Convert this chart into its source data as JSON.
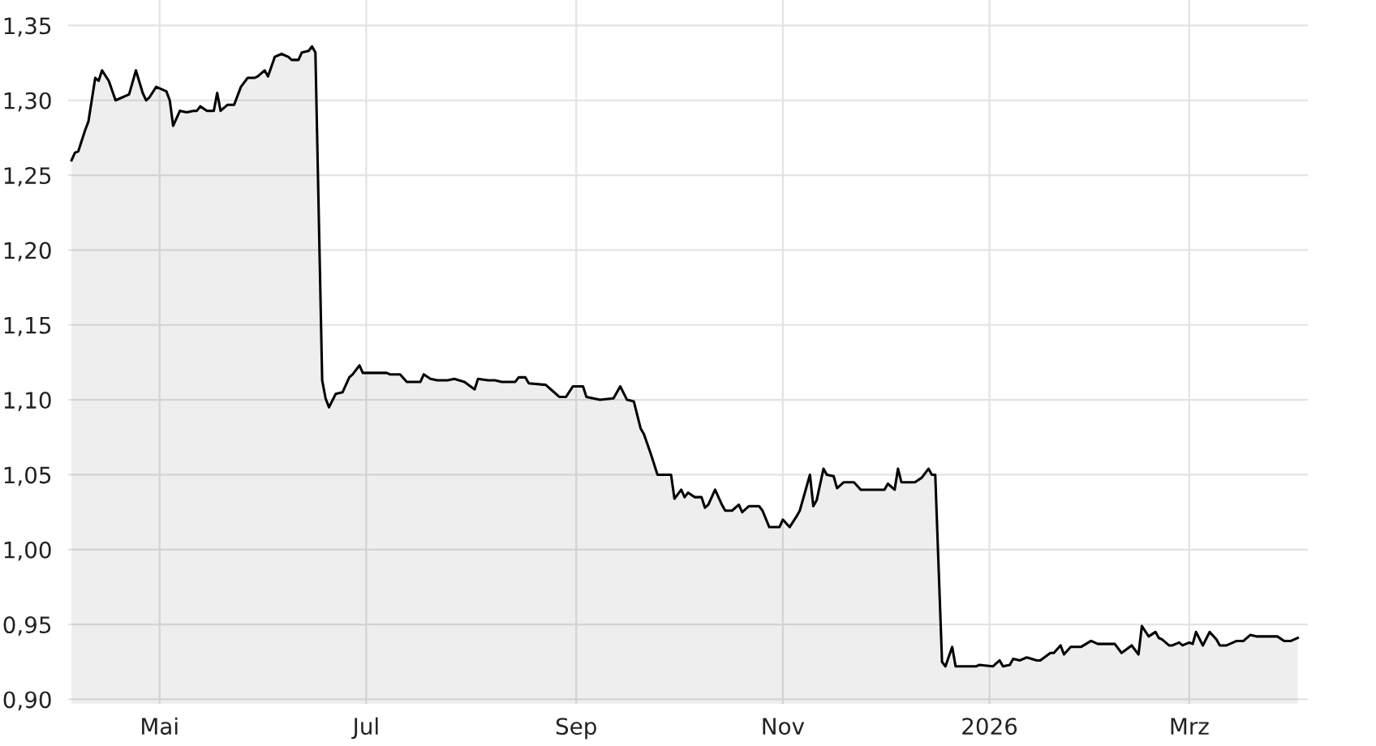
{
  "chart_data": {
    "type": "area",
    "x": [
      "2025-04-05",
      "2025-04-06",
      "2025-04-07",
      "2025-04-09",
      "2025-04-10",
      "2025-04-12",
      "2025-04-13",
      "2025-04-14",
      "2025-04-16",
      "2025-04-18",
      "2025-04-22",
      "2025-04-24",
      "2025-04-26",
      "2025-04-27",
      "2025-04-28",
      "2025-04-30",
      "2025-05-03",
      "2025-05-04",
      "2025-05-05",
      "2025-05-07",
      "2025-05-09",
      "2025-05-11",
      "2025-05-12",
      "2025-05-13",
      "2025-05-15",
      "2025-05-17",
      "2025-05-18",
      "2025-05-19",
      "2025-05-21",
      "2025-05-23",
      "2025-05-25",
      "2025-05-27",
      "2025-05-29",
      "2025-05-30",
      "2025-06-01",
      "2025-06-02",
      "2025-06-04",
      "2025-06-06",
      "2025-06-08",
      "2025-06-09",
      "2025-06-11",
      "2025-06-12",
      "2025-06-14",
      "2025-06-15",
      "2025-06-16",
      "2025-06-18",
      "2025-06-19",
      "2025-06-20",
      "2025-06-22",
      "2025-06-24",
      "2025-06-26",
      "2025-06-27",
      "2025-06-29",
      "2025-06-30",
      "2025-07-07",
      "2025-07-08",
      "2025-07-11",
      "2025-07-13",
      "2025-07-17",
      "2025-07-18",
      "2025-07-20",
      "2025-07-22",
      "2025-07-25",
      "2025-07-27",
      "2025-07-30",
      "2025-08-02",
      "2025-08-03",
      "2025-08-06",
      "2025-08-08",
      "2025-08-10",
      "2025-08-14",
      "2025-08-15",
      "2025-08-17",
      "2025-08-18",
      "2025-08-23",
      "2025-08-25",
      "2025-08-27",
      "2025-08-29",
      "2025-08-31",
      "2025-09-03",
      "2025-09-04",
      "2025-09-08",
      "2025-09-12",
      "2025-09-14",
      "2025-09-16",
      "2025-09-18",
      "2025-09-20",
      "2025-09-21",
      "2025-09-23",
      "2025-09-25",
      "2025-09-29",
      "2025-09-30",
      "2025-10-02",
      "2025-10-03",
      "2025-10-04",
      "2025-10-06",
      "2025-10-08",
      "2025-10-09",
      "2025-10-10",
      "2025-10-12",
      "2025-10-14",
      "2025-10-15",
      "2025-10-17",
      "2025-10-19",
      "2025-10-20",
      "2025-10-22",
      "2025-10-25",
      "2025-10-26",
      "2025-10-28",
      "2025-10-31",
      "2025-11-01",
      "2025-11-03",
      "2025-11-05",
      "2025-11-06",
      "2025-11-08",
      "2025-11-09",
      "2025-11-10",
      "2025-11-11",
      "2025-11-13",
      "2025-11-14",
      "2025-11-16",
      "2025-11-17",
      "2025-11-19",
      "2025-11-22",
      "2025-11-24",
      "2025-12-01",
      "2025-12-02",
      "2025-12-04",
      "2025-12-05",
      "2025-12-06",
      "2025-12-10",
      "2025-12-12",
      "2025-12-14",
      "2025-12-15",
      "2025-12-16",
      "2025-12-18",
      "2025-12-19",
      "2025-12-21",
      "2025-12-22",
      "2025-12-28",
      "2025-12-29",
      "2026-01-02",
      "2026-01-04",
      "2026-01-05",
      "2026-01-07",
      "2026-01-08",
      "2026-01-10",
      "2026-01-12",
      "2026-01-15",
      "2026-01-16",
      "2026-01-19",
      "2026-01-20",
      "2026-01-22",
      "2026-01-23",
      "2026-01-25",
      "2026-01-28",
      "2026-01-31",
      "2026-02-02",
      "2026-02-07",
      "2026-02-09",
      "2026-02-12",
      "2026-02-14",
      "2026-02-15",
      "2026-02-17",
      "2026-02-19",
      "2026-02-20",
      "2026-02-21",
      "2026-02-23",
      "2026-02-24",
      "2026-02-26",
      "2026-02-27",
      "2026-03-01",
      "2026-03-02",
      "2026-03-03",
      "2026-03-05",
      "2026-03-07",
      "2026-03-09",
      "2026-03-10",
      "2026-03-12",
      "2026-03-15",
      "2026-03-17",
      "2026-03-19",
      "2026-03-21",
      "2026-03-27",
      "2026-03-29",
      "2026-03-31",
      "2026-04-02"
    ],
    "series": [
      {
        "color": "#000000",
        "values": [
          1.26,
          1.265,
          1.266,
          1.28,
          1.286,
          1.315,
          1.313,
          1.32,
          1.313,
          1.3,
          1.304,
          1.32,
          1.305,
          1.3,
          1.302,
          1.309,
          1.306,
          1.3,
          1.283,
          1.293,
          1.292,
          1.293,
          1.293,
          1.296,
          1.293,
          1.293,
          1.305,
          1.293,
          1.297,
          1.297,
          1.309,
          1.315,
          1.315,
          1.316,
          1.32,
          1.316,
          1.329,
          1.331,
          1.329,
          1.327,
          1.327,
          1.332,
          1.333,
          1.336,
          1.332,
          1.113,
          1.101,
          1.095,
          1.104,
          1.105,
          1.115,
          1.117,
          1.123,
          1.118,
          1.118,
          1.117,
          1.117,
          1.112,
          1.112,
          1.117,
          1.114,
          1.113,
          1.113,
          1.114,
          1.112,
          1.107,
          1.114,
          1.113,
          1.113,
          1.112,
          1.112,
          1.115,
          1.115,
          1.111,
          1.11,
          1.106,
          1.102,
          1.102,
          1.109,
          1.109,
          1.102,
          1.1,
          1.101,
          1.109,
          1.1,
          1.099,
          1.081,
          1.077,
          1.064,
          1.05,
          1.05,
          1.034,
          1.04,
          1.035,
          1.038,
          1.035,
          1.035,
          1.028,
          1.03,
          1.04,
          1.03,
          1.026,
          1.026,
          1.03,
          1.025,
          1.029,
          1.029,
          1.026,
          1.015,
          1.015,
          1.02,
          1.015,
          1.022,
          1.026,
          1.042,
          1.05,
          1.029,
          1.033,
          1.054,
          1.05,
          1.049,
          1.041,
          1.045,
          1.045,
          1.04,
          1.04,
          1.044,
          1.04,
          1.054,
          1.045,
          1.045,
          1.048,
          1.054,
          1.05,
          1.05,
          0.925,
          0.922,
          0.935,
          0.922,
          0.922,
          0.923,
          0.922,
          0.926,
          0.922,
          0.923,
          0.927,
          0.926,
          0.928,
          0.926,
          0.926,
          0.931,
          0.931,
          0.936,
          0.93,
          0.935,
          0.935,
          0.939,
          0.937,
          0.937,
          0.931,
          0.936,
          0.93,
          0.949,
          0.942,
          0.945,
          0.941,
          0.94,
          0.936,
          0.936,
          0.938,
          0.936,
          0.938,
          0.937,
          0.945,
          0.936,
          0.945,
          0.94,
          0.936,
          0.936,
          0.939,
          0.939,
          0.943,
          0.942,
          0.942,
          0.939,
          0.939,
          0.941
        ]
      }
    ],
    "xlim": [
      "2025-04-04",
      "2026-04-05"
    ],
    "xticks": [
      {
        "value": "2025-05-01",
        "label": "Mai"
      },
      {
        "value": "2025-07-01",
        "label": "Jul"
      },
      {
        "value": "2025-09-01",
        "label": "Sep"
      },
      {
        "value": "2025-11-01",
        "label": "Nov"
      },
      {
        "value": "2026-01-01",
        "label": "2026"
      },
      {
        "value": "2026-03-01",
        "label": "Mrz"
      }
    ],
    "ylim": [
      0.897,
      1.367
    ],
    "yticks": [
      {
        "value": 0.9,
        "label": "0,90"
      },
      {
        "value": 0.95,
        "label": "0,95"
      },
      {
        "value": 1.0,
        "label": "1,00"
      },
      {
        "value": 1.05,
        "label": "1,05"
      },
      {
        "value": 1.1,
        "label": "1,10"
      },
      {
        "value": 1.15,
        "label": "1,15"
      },
      {
        "value": 1.2,
        "label": "1,20"
      },
      {
        "value": 1.25,
        "label": "1,25"
      },
      {
        "value": 1.3,
        "label": "1,30"
      },
      {
        "value": 1.35,
        "label": "1,35"
      }
    ],
    "grid": true
  }
}
